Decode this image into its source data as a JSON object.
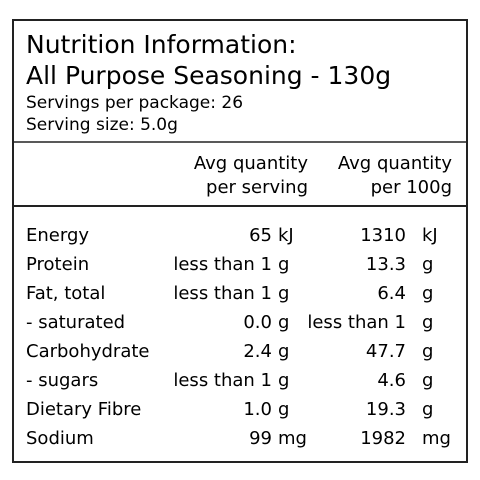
{
  "header": {
    "title": "Nutrition Information:",
    "subtitle": "All Purpose Seasoning - 130g",
    "servings_per_package": "Servings per package: 26",
    "serving_size": "Serving size: 5.0g"
  },
  "table": {
    "columns": [
      [
        "Avg quantity",
        "per serving"
      ],
      [
        "Avg quantity",
        "per 100g"
      ]
    ],
    "rows": [
      [
        "Energy",
        "65",
        "kJ",
        "1310",
        "kJ"
      ],
      [
        "Protein",
        "less than 1",
        "g",
        "13.3",
        "g"
      ],
      [
        "Fat, total",
        "less than 1",
        "g",
        "6.4",
        "g"
      ],
      [
        "- saturated",
        "0.0",
        "g",
        "less than 1",
        "g"
      ],
      [
        "Carbohydrate",
        "2.4",
        "g",
        "47.7",
        "g"
      ],
      [
        "- sugars",
        "less than 1",
        "g",
        "4.6",
        "g"
      ],
      [
        "Dietary Fibre",
        "1.0",
        "g",
        "19.3",
        "g"
      ],
      [
        "Sodium",
        "99",
        "mg",
        "1982",
        "mg"
      ]
    ]
  }
}
